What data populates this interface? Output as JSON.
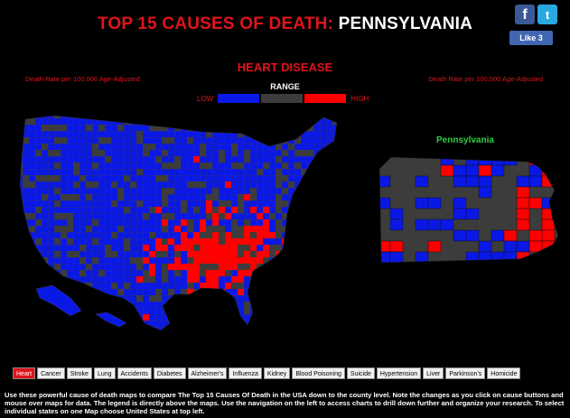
{
  "title": {
    "prefix": "TOP 15 CAUSES OF DEATH: ",
    "state": "PENNSYLVANIA"
  },
  "social": {
    "facebook_icon": "f",
    "twitter_icon": "t",
    "like_label": "Like 3"
  },
  "cause_title": "HEART DISEASE",
  "rate_note_left": "Death Rate per 100,000 Age-Adjusted",
  "rate_note_right": "Death Rate per 100,000 Age-Adjusted",
  "legend": {
    "range_label": "RANGE",
    "low_label": "LOW",
    "high_label": "HIGH",
    "colors": {
      "low": "#0a18e6",
      "mid": "#3c3c3c",
      "high": "#ff0000"
    }
  },
  "state_map_title": "Pennsylvania",
  "cause_buttons": [
    {
      "label": "Heart",
      "active": true
    },
    {
      "label": "Cancer",
      "active": false
    },
    {
      "label": "Stroke",
      "active": false
    },
    {
      "label": "Lung",
      "active": false
    },
    {
      "label": "Accidents",
      "active": false
    },
    {
      "label": "Diabetes",
      "active": false
    },
    {
      "label": "Alzheimer's",
      "active": false
    },
    {
      "label": "Influenza",
      "active": false
    },
    {
      "label": "Kidney",
      "active": false
    },
    {
      "label": "Blood Poisoning",
      "active": false
    },
    {
      "label": "Suicide",
      "active": false
    },
    {
      "label": "Hypertension",
      "active": false
    },
    {
      "label": "Liver",
      "active": false
    },
    {
      "label": "Parkinson's",
      "active": false
    },
    {
      "label": "Homicide",
      "active": false
    }
  ],
  "description": "Use these powerful cause of death maps to compare The Top 15 Causes Of Death in the USA down to the county level. Note the changes as you click on cause buttons and mouse over maps for data. The legend is directly above the maps. Use the navigation on the left to access charts to drill down further and organize your research. To select individual states on one Map choose United States at top left."
}
